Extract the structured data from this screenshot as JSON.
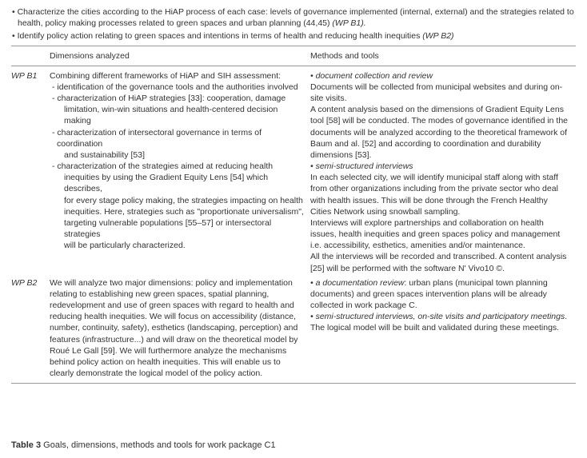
{
  "header": {
    "bullet1_a": "• Characterize the cities according to the HiAP process of each case: levels of governance implemented (internal, external) and the strategies related to health, policy making processes related to green spaces and urban planning (44,45) ",
    "bullet1_b": "(WP B1).",
    "bullet2_a": "• Identify policy action relating to green spaces and intentions in terms of health and reducing health inequities ",
    "bullet2_b": "(WP B2)"
  },
  "table": {
    "head_dim": "Dimensions analyzed",
    "head_meth": "Methods and tools",
    "b1": {
      "label": "WP B1",
      "dim_intro": "Combining different frameworks of HiAP and SIH assessment:",
      "dim_l1": "- identification of the governance tools and the authorities involved",
      "dim_l2": "- characterization of HiAP strategies [33]: cooperation, damage",
      "dim_l2b": "limitation, win-win situations and health-centered decision making",
      "dim_l3": "- characterization of intersectoral governance in terms of coordination",
      "dim_l3b": "and sustainability [53]",
      "dim_l4": "- characterization of the strategies aimed at reducing health",
      "dim_l4b": "inequities by using the Gradient Equity Lens [54] which describes,",
      "dim_l4c": "for every stage policy making, the strategies impacting on health",
      "dim_l4d": "inequities. Here, strategies such as \"proportionate universalism\",",
      "dim_l4e": "targeting vulnerable populations [55–57] or intersectoral strategies",
      "dim_l4f": "will be particularly characterized.",
      "meth_t1": "• document collection and review",
      "meth_p1a": "Documents will be collected from municipal websites and during on-site visits.",
      "meth_p1b": "A content analysis based on the dimensions of Gradient Equity Lens tool [58] will be conducted. The modes of governance identified in the documents will be analyzed according to the theoretical framework of Baum and al. [52] and according to coordination and durability dimensions [53].",
      "meth_t2": "• semi-structured interviews",
      "meth_p2a": "In each selected city, we will identify municipal staff along with staff from other organizations including from the private sector who deal with health issues. This will be done through the French Healthy Cities Network using snowball sampling.",
      "meth_p2b": "Interviews will explore partnerships and collaboration on health issues, health inequities and green spaces policy and management i.e. accessibility, esthetics, amenities and/or maintenance.",
      "meth_p2c": "All the interviews will be recorded and transcribed. A content analysis [25] will be performed with the software N' Vivo10 ©."
    },
    "b2": {
      "label": "WP B2",
      "dim": "We will analyze two major dimensions: policy and implementation relating to establishing new green spaces, spatial planning, redevelopment and use of green spaces with regard to health and reducing health inequities. We will focus on accessibility (distance, number, continuity, safety), esthetics (landscaping, perception) and features (infrastructure...) and will draw on the theoretical model by Roué Le Gall [59]. We will furthermore analyze the mechanisms behind policy action on health inequities. This will enable us to clearly demonstrate the logical model of the policy action.",
      "meth_t1a": "• a documentation review",
      "meth_t1b": ": urban plans (municipal town planning documents) and green spaces intervention plans will be already collected in work package C.",
      "meth_t2a": "• semi-structured interviews, on-site visits and participatory meetings",
      "meth_t2b": ". The logical model will be built and validated during these meetings."
    }
  },
  "caption": {
    "label": "Table 3",
    "text": " Goals, dimensions, methods and tools for work package C1"
  }
}
